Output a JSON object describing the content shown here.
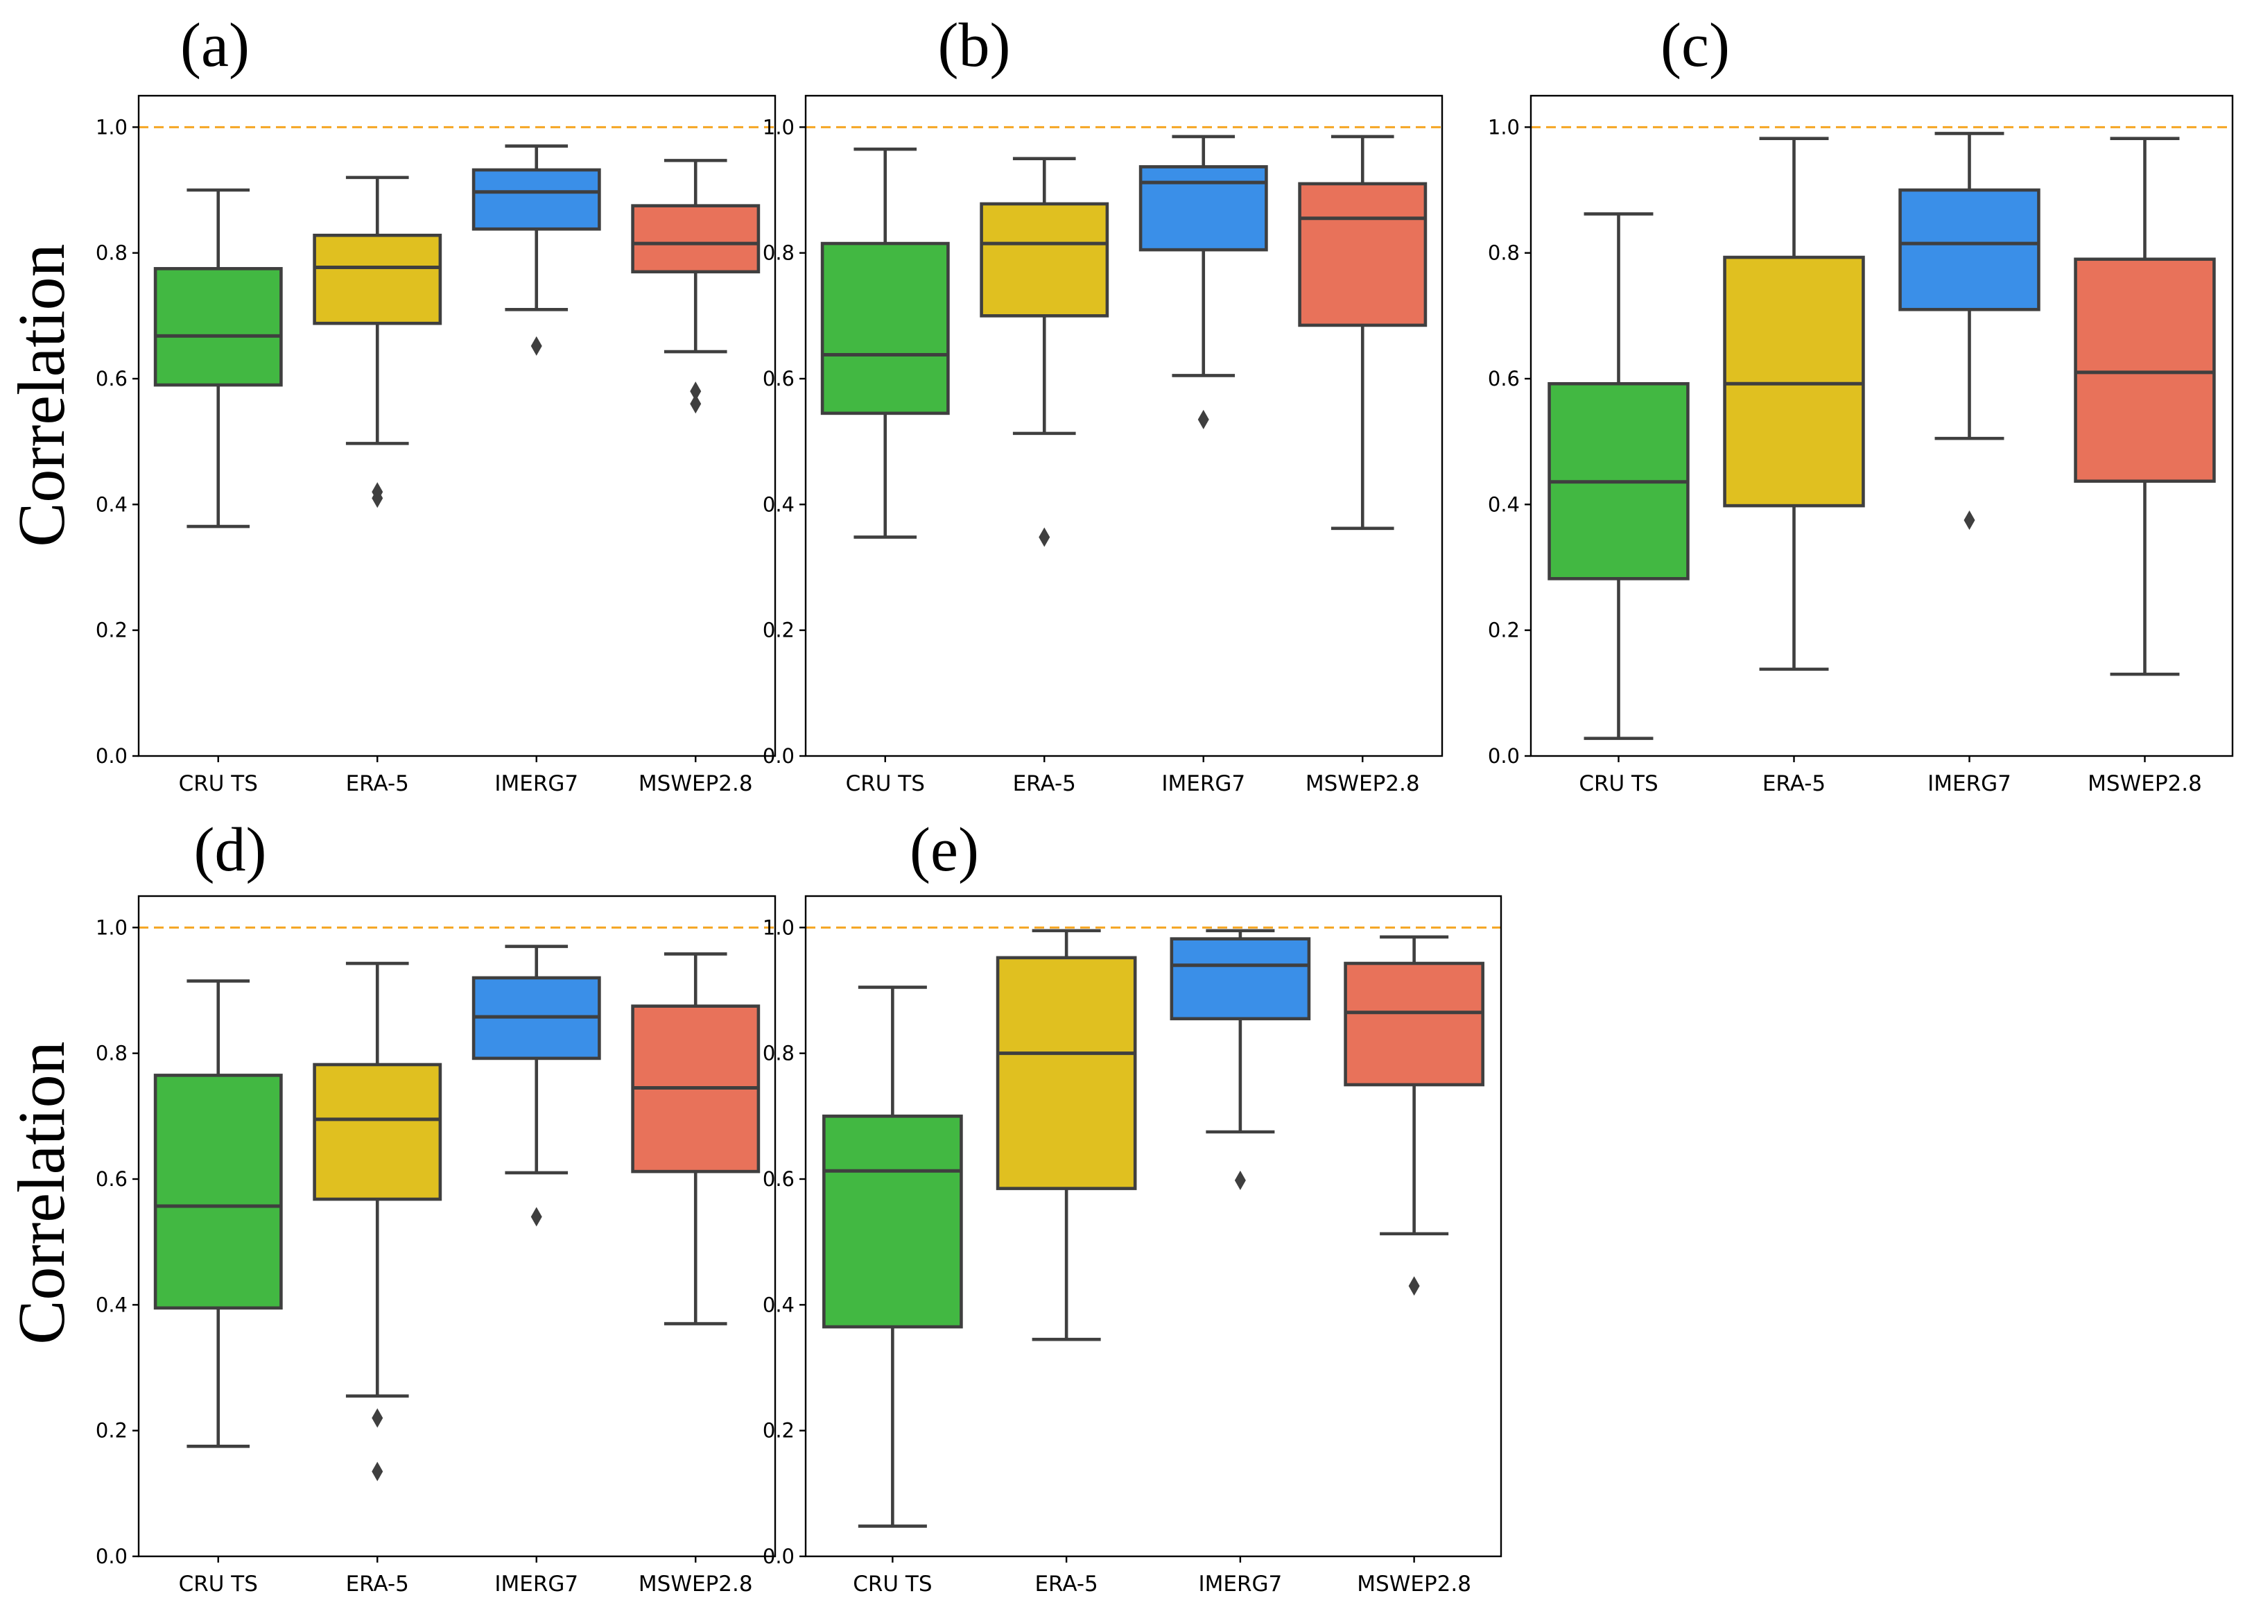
{
  "colors": {
    "CRU TS": "#42b842",
    "ERA-5": "#e0c020",
    "IMERG7": "#3a8fe8",
    "MSWEP2.8": "#e8725a",
    "reference_line": "#f5a623",
    "box_edge": "#3f3f3f"
  },
  "ylabel": "Correlation",
  "chart_data": [
    {
      "type": "boxplot",
      "title": "(a)",
      "ylabel": "Correlation",
      "ylim": [
        0.0,
        1.05
      ],
      "yticks": [
        "0.0",
        "0.2",
        "0.4",
        "0.6",
        "0.8",
        "1.0"
      ],
      "reference_line": 1.0,
      "categories": [
        "CRU TS",
        "ERA-5",
        "IMERG7",
        "MSWEP2.8"
      ],
      "boxes": [
        {
          "name": "CRU TS",
          "whislo": 0.365,
          "q1": 0.59,
          "med": 0.668,
          "q3": 0.775,
          "whishi": 0.9,
          "fliers": []
        },
        {
          "name": "ERA-5",
          "whislo": 0.497,
          "q1": 0.688,
          "med": 0.777,
          "q3": 0.828,
          "whishi": 0.92,
          "fliers": [
            0.41,
            0.42
          ]
        },
        {
          "name": "IMERG7",
          "whislo": 0.71,
          "q1": 0.838,
          "med": 0.897,
          "q3": 0.932,
          "whishi": 0.97,
          "fliers": [
            0.652
          ]
        },
        {
          "name": "MSWEP2.8",
          "whislo": 0.643,
          "q1": 0.77,
          "med": 0.815,
          "q3": 0.875,
          "whishi": 0.947,
          "fliers": [
            0.56,
            0.58
          ]
        }
      ]
    },
    {
      "type": "boxplot",
      "title": "(b)",
      "ylabel": "",
      "ylim": [
        0.0,
        1.05
      ],
      "yticks": [
        "0.0",
        "0.2",
        "0.4",
        "0.6",
        "0.8",
        "1.0"
      ],
      "reference_line": 1.0,
      "categories": [
        "CRU TS",
        "ERA-5",
        "IMERG7",
        "MSWEP2.8"
      ],
      "boxes": [
        {
          "name": "CRU TS",
          "whislo": 0.348,
          "q1": 0.545,
          "med": 0.638,
          "q3": 0.815,
          "whishi": 0.965,
          "fliers": []
        },
        {
          "name": "ERA-5",
          "whislo": 0.513,
          "q1": 0.7,
          "med": 0.815,
          "q3": 0.878,
          "whishi": 0.95,
          "fliers": [
            0.348
          ]
        },
        {
          "name": "IMERG7",
          "whislo": 0.605,
          "q1": 0.805,
          "med": 0.912,
          "q3": 0.937,
          "whishi": 0.985,
          "fliers": [
            0.535
          ]
        },
        {
          "name": "MSWEP2.8",
          "whislo": 0.362,
          "q1": 0.685,
          "med": 0.855,
          "q3": 0.91,
          "whishi": 0.985,
          "fliers": []
        }
      ]
    },
    {
      "type": "boxplot",
      "title": "(c)",
      "ylabel": "",
      "ylim": [
        0.0,
        1.05
      ],
      "yticks": [
        "0.0",
        "0.2",
        "0.4",
        "0.6",
        "0.8",
        "1.0"
      ],
      "reference_line": 1.0,
      "categories": [
        "CRU TS",
        "ERA-5",
        "IMERG7",
        "MSWEP2.8"
      ],
      "boxes": [
        {
          "name": "CRU TS",
          "whislo": 0.028,
          "q1": 0.282,
          "med": 0.436,
          "q3": 0.592,
          "whishi": 0.862,
          "fliers": []
        },
        {
          "name": "ERA-5",
          "whislo": 0.138,
          "q1": 0.398,
          "med": 0.592,
          "q3": 0.793,
          "whishi": 0.982,
          "fliers": []
        },
        {
          "name": "IMERG7",
          "whislo": 0.505,
          "q1": 0.71,
          "med": 0.815,
          "q3": 0.9,
          "whishi": 0.99,
          "fliers": [
            0.375
          ]
        },
        {
          "name": "MSWEP2.8",
          "whislo": 0.13,
          "q1": 0.437,
          "med": 0.61,
          "q3": 0.79,
          "whishi": 0.982,
          "fliers": []
        }
      ]
    },
    {
      "type": "boxplot",
      "title": "(d)",
      "ylabel": "Correlation",
      "ylim": [
        0.0,
        1.05
      ],
      "yticks": [
        "0.0",
        "0.2",
        "0.4",
        "0.6",
        "0.8",
        "1.0"
      ],
      "reference_line": 1.0,
      "categories": [
        "CRU TS",
        "ERA-5",
        "IMERG7",
        "MSWEP2.8"
      ],
      "boxes": [
        {
          "name": "CRU TS",
          "whislo": 0.175,
          "q1": 0.395,
          "med": 0.557,
          "q3": 0.765,
          "whishi": 0.915,
          "fliers": []
        },
        {
          "name": "ERA-5",
          "whislo": 0.255,
          "q1": 0.568,
          "med": 0.695,
          "q3": 0.782,
          "whishi": 0.943,
          "fliers": [
            0.135,
            0.22
          ]
        },
        {
          "name": "IMERG7",
          "whislo": 0.61,
          "q1": 0.792,
          "med": 0.858,
          "q3": 0.92,
          "whishi": 0.97,
          "fliers": [
            0.54
          ]
        },
        {
          "name": "MSWEP2.8",
          "whislo": 0.37,
          "q1": 0.612,
          "med": 0.745,
          "q3": 0.875,
          "whishi": 0.958,
          "fliers": []
        }
      ]
    },
    {
      "type": "boxplot",
      "title": "(e)",
      "ylabel": "",
      "ylim": [
        0.0,
        1.05
      ],
      "yticks": [
        "0.0",
        "0.2",
        "0.4",
        "0.6",
        "0.8",
        "1.0"
      ],
      "reference_line": 1.0,
      "categories": [
        "CRU TS",
        "ERA-5",
        "IMERG7",
        "MSWEP2.8"
      ],
      "boxes": [
        {
          "name": "CRU TS",
          "whislo": 0.048,
          "q1": 0.365,
          "med": 0.613,
          "q3": 0.7,
          "whishi": 0.905,
          "fliers": []
        },
        {
          "name": "ERA-5",
          "whislo": 0.345,
          "q1": 0.585,
          "med": 0.8,
          "q3": 0.952,
          "whishi": 0.995,
          "fliers": []
        },
        {
          "name": "IMERG7",
          "whislo": 0.675,
          "q1": 0.855,
          "med": 0.94,
          "q3": 0.982,
          "whishi": 0.995,
          "fliers": [
            0.598
          ]
        },
        {
          "name": "MSWEP2.8",
          "whislo": 0.513,
          "q1": 0.75,
          "med": 0.865,
          "q3": 0.943,
          "whishi": 0.985,
          "fliers": [
            0.43
          ]
        }
      ]
    }
  ]
}
